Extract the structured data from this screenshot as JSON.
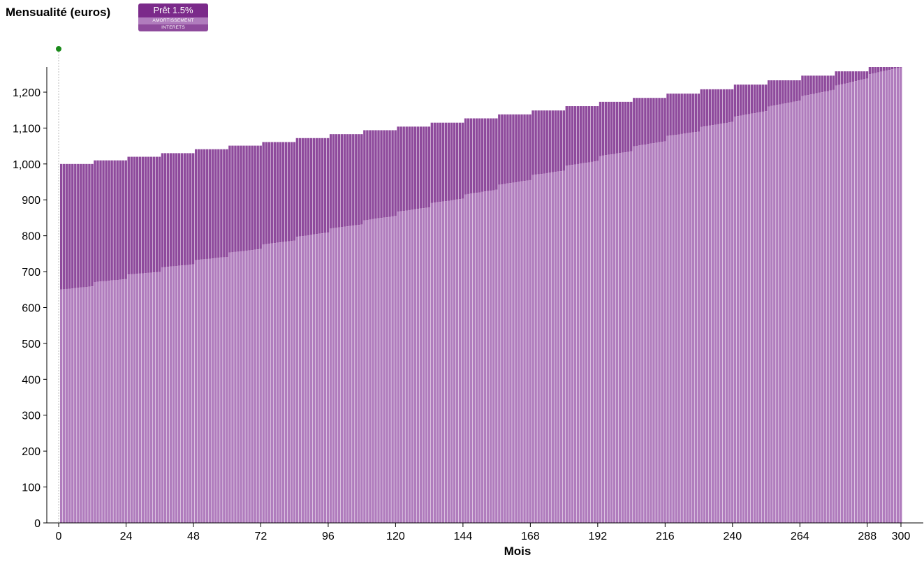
{
  "chart_data": {
    "type": "bar",
    "stacked": true,
    "title": "",
    "ylabel": "Mensualité (euros)",
    "xlabel": "Mois",
    "legend": {
      "title": "Prêt 1.5%",
      "items": [
        "AMORTISSEMENT",
        "INTERETS"
      ],
      "placement": "top-left"
    },
    "x_range": [
      0,
      300
    ],
    "ylim": [
      0,
      1270
    ],
    "x_ticks": [
      0,
      24,
      48,
      72,
      96,
      120,
      144,
      168,
      192,
      216,
      240,
      264,
      288,
      300
    ],
    "y_ticks": [
      0,
      100,
      200,
      300,
      400,
      500,
      600,
      700,
      800,
      900,
      1000,
      1100,
      1200
    ],
    "period_months": 12,
    "series": [
      {
        "name": "AMORTISSEMENT",
        "color": "#b07cbd",
        "period_start_values": [
          650,
          671,
          692,
          712,
          732,
          753,
          776,
          797,
          820,
          843,
          867,
          891,
          915,
          942,
          969,
          995,
          1022,
          1049,
          1078,
          1103,
          1132,
          1160,
          1189,
          1218,
          1250
        ],
        "period_end_values": [
          659,
          679,
          699,
          720,
          741,
          763,
          786,
          809,
          831,
          855,
          879,
          903,
          928,
          955,
          981,
          1008,
          1035,
          1063,
          1090,
          1117,
          1147,
          1176,
          1206,
          1238,
          1269
        ]
      },
      {
        "name": "INTERETS",
        "color": "#8e4a9c",
        "period_totals": [
          1000,
          1010,
          1020,
          1030,
          1041,
          1051,
          1061,
          1072,
          1083,
          1094,
          1104,
          1115,
          1127,
          1138,
          1149,
          1161,
          1173,
          1184,
          1196,
          1208,
          1221,
          1233,
          1246,
          1258,
          1270
        ]
      }
    ],
    "marker_color": "#1a8a1a"
  }
}
